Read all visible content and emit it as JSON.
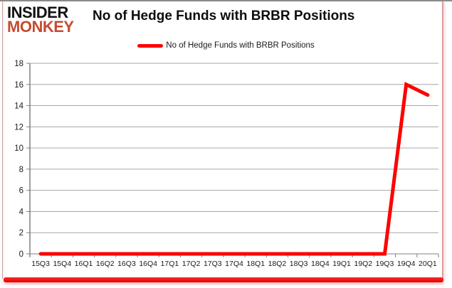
{
  "logo": {
    "line1": "INSIDER",
    "line2": "MONKEY"
  },
  "header": {
    "title": "No of Hedge Funds with BRBR Positions"
  },
  "legend": {
    "label": "No of Hedge Funds with BRBR Positions",
    "swatch_color": "#ff0000"
  },
  "chart_data": {
    "type": "line",
    "title": "No of Hedge Funds with BRBR Positions",
    "categories": [
      "15Q3",
      "15Q4",
      "16Q1",
      "16Q2",
      "16Q3",
      "16Q4",
      "17Q1",
      "17Q2",
      "17Q3",
      "17Q4",
      "18Q1",
      "18Q2",
      "18Q3",
      "18Q4",
      "19Q1",
      "19Q2",
      "19Q3",
      "19Q4",
      "20Q1"
    ],
    "series": [
      {
        "name": "No of Hedge Funds with BRBR Positions",
        "values": [
          0,
          0,
          0,
          0,
          0,
          0,
          0,
          0,
          0,
          0,
          0,
          0,
          0,
          0,
          0,
          0,
          0,
          16,
          15
        ]
      }
    ],
    "xlabel": "",
    "ylabel": "",
    "ylim": [
      0,
      18
    ],
    "ytick_step": 2,
    "grid": true,
    "legend_position": "top-center",
    "line_color": "#ff0000",
    "grid_color": "#a6a6a6",
    "axis_color": "#808080",
    "tick_label_color": "#1a1a1a"
  }
}
